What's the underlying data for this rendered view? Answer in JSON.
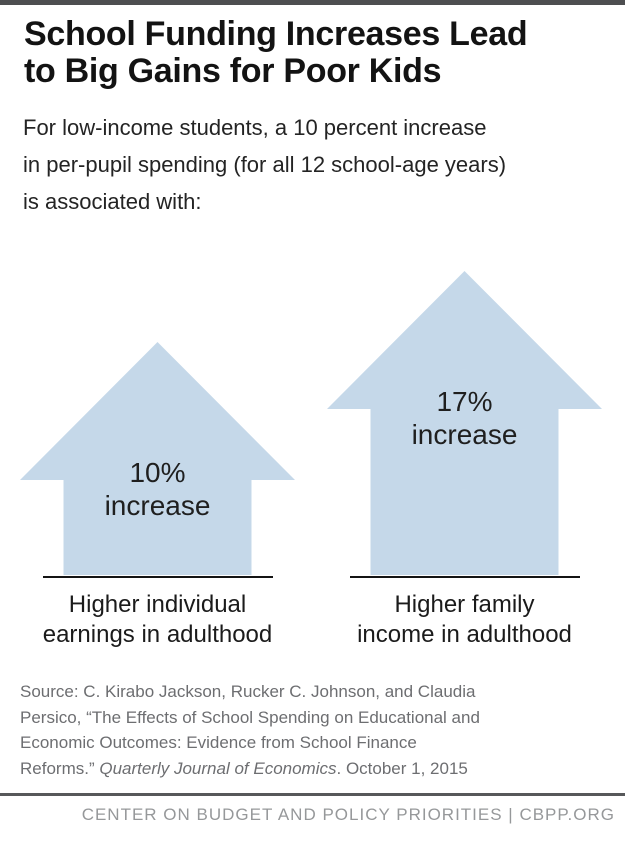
{
  "colors": {
    "arrow_fill": "#c5d8e9",
    "top_bar": "#4d4e50",
    "footer_rule": "#57585a",
    "text_dark": "#1b1b1b",
    "source_gray": "#6d6e71",
    "footer_gray": "#96989a"
  },
  "header": {
    "title_lines": [
      "School Funding Increases Lead",
      "to Big Gains for Poor Kids"
    ],
    "subtitle_lines": [
      "For low-income students, a 10 percent increase",
      "in per-pupil spending (for all 12 school-age years)",
      "is associated with:"
    ]
  },
  "chart_data": {
    "type": "bar",
    "variant": "pictogram-up-arrows",
    "title": "School Funding Increases Lead to Big Gains for Poor Kids",
    "subtitle": "For low-income students, a 10 percent increase in per-pupil spending (for all 12 school-age years) is associated with:",
    "categories": [
      "Higher individual earnings in adulthood",
      "Higher family income in adulthood"
    ],
    "values": [
      10,
      17
    ],
    "value_labels": [
      "10% increase",
      "17% increase"
    ],
    "unit": "percent increase",
    "marker": "upward-arrow",
    "color": "#c5d8e9",
    "legend": "none",
    "grid": false,
    "source": "Source: C. Kirabo Jackson, Rucker C. Johnson, and Claudia Persico, “The Effects of School Spending on Educational and Economic Outcomes: Evidence from School Finance Reforms.” Quarterly Journal of Economics. October 1, 2015"
  },
  "arrows": [
    {
      "value_label": "10%",
      "increase_label": "increase",
      "category_line1": "Higher individual",
      "category_line2": "earnings in adulthood"
    },
    {
      "value_label": "17%",
      "increase_label": "increase",
      "category_line1": "Higher family",
      "category_line2": "income in adulthood"
    }
  ],
  "source": {
    "line1": "Source: C. Kirabo Jackson, Rucker C. Johnson, and Claudia",
    "line2": "Persico, “The Effects of School Spending on Educational and",
    "line3": "Economic Outcomes: Evidence from School Finance",
    "line4_pre": "Reforms.” ",
    "line4_italic": "Quarterly Journal of Economics",
    "line4_post": ". October 1, 2015"
  },
  "footer": {
    "text": "CENTER ON BUDGET AND POLICY PRIORITIES | CBPP.ORG"
  }
}
